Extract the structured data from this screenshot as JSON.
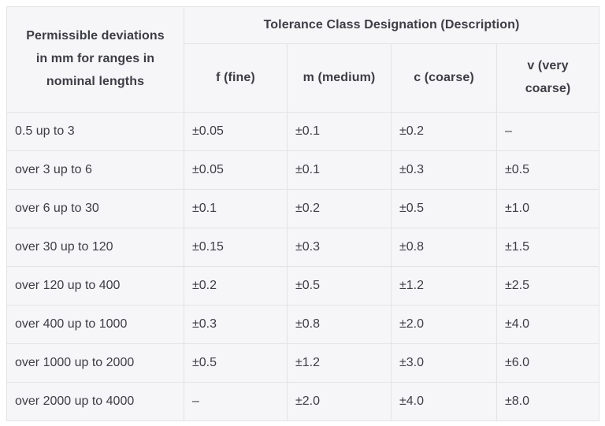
{
  "table": {
    "corner_header": "Permissible deviations in mm for ranges in nominal lengths",
    "group_header": "Tolerance Class Designation (Description)",
    "column_headers": [
      "f (fine)",
      "m (medium)",
      "c (coarse)",
      "v (very coarse)"
    ],
    "rows": [
      {
        "range": "0.5 up to 3",
        "values": [
          "±0.05",
          "±0.1",
          "±0.2",
          "–"
        ]
      },
      {
        "range": "over 3 up to 6",
        "values": [
          "±0.05",
          "±0.1",
          "±0.3",
          "±0.5"
        ]
      },
      {
        "range": "over 6 up to 30",
        "values": [
          "±0.1",
          "±0.2",
          "±0.5",
          "±1.0"
        ]
      },
      {
        "range": "over 30 up to 120",
        "values": [
          "±0.15",
          "±0.3",
          "±0.8",
          "±1.5"
        ]
      },
      {
        "range": "over 120 up to 400",
        "values": [
          "±0.2",
          "±0.5",
          "±1.2",
          "±2.5"
        ]
      },
      {
        "range": "over 400 up to 1000",
        "values": [
          "±0.3",
          "±0.8",
          "±2.0",
          "±4.0"
        ]
      },
      {
        "range": "over 1000 up to 2000",
        "values": [
          "±0.5",
          "±1.2",
          "±3.0",
          "±6.0"
        ]
      },
      {
        "range": "over 2000 up to 4000",
        "values": [
          "–",
          "±2.0",
          "±4.0",
          "±8.0"
        ]
      }
    ],
    "colors": {
      "cell_background": "#f6f6f8",
      "border": "#e3e3e6",
      "text": "#3d3d45",
      "page_background": "#ffffff"
    }
  }
}
